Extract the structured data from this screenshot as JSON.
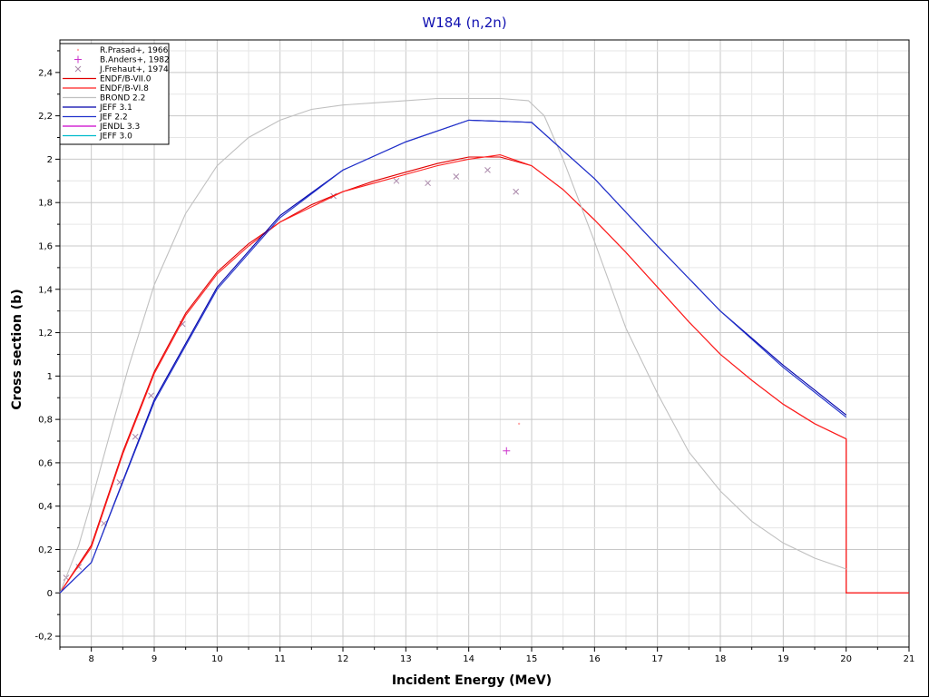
{
  "chart_data": {
    "type": "line",
    "title": "W184 (n,2n)",
    "xlabel": "Incident Energy (MeV)",
    "ylabel": "Cross section (b)",
    "xlim": [
      7.5,
      21
    ],
    "ylim": [
      -0.25,
      2.55
    ],
    "grid": true,
    "x_ticks": [
      {
        "value": 8,
        "label": "8"
      },
      {
        "value": 9,
        "label": "9"
      },
      {
        "value": 10,
        "label": "10"
      },
      {
        "value": 11,
        "label": "11"
      },
      {
        "value": 12,
        "label": "12"
      },
      {
        "value": 13,
        "label": "13"
      },
      {
        "value": 14,
        "label": "14"
      },
      {
        "value": 15,
        "label": "15"
      },
      {
        "value": 16,
        "label": "16"
      },
      {
        "value": 17,
        "label": "17"
      },
      {
        "value": 18,
        "label": "18"
      },
      {
        "value": 19,
        "label": "19"
      },
      {
        "value": 20,
        "label": "20"
      },
      {
        "value": 21,
        "label": "21"
      }
    ],
    "y_ticks": [
      {
        "value": -0.2,
        "label": "-0,2"
      },
      {
        "value": 0,
        "label": "0"
      },
      {
        "value": 0.2,
        "label": "0,2"
      },
      {
        "value": 0.4,
        "label": "0,4"
      },
      {
        "value": 0.6,
        "label": "0,6"
      },
      {
        "value": 0.8,
        "label": "0,8"
      },
      {
        "value": 1.0,
        "label": "1"
      },
      {
        "value": 1.2,
        "label": "1,2"
      },
      {
        "value": 1.4,
        "label": "1,4"
      },
      {
        "value": 1.6,
        "label": "1,6"
      },
      {
        "value": 1.8,
        "label": "1,8"
      },
      {
        "value": 2.0,
        "label": "2"
      },
      {
        "value": 2.2,
        "label": "2,2"
      },
      {
        "value": 2.4,
        "label": "2,4"
      }
    ],
    "legend_position": "top-left",
    "series": [
      {
        "name": "R.Prasad+, 1966",
        "kind": "marker",
        "marker": "dot",
        "color": "#ffaaaa",
        "x": [
          14.8
        ],
        "y": [
          0.78
        ]
      },
      {
        "name": "B.Anders+, 1982",
        "kind": "marker",
        "marker": "plus",
        "color": "#cc33cc",
        "x": [
          14.6
        ],
        "y": [
          0.655
        ]
      },
      {
        "name": "J.Frehaut+, 1974",
        "kind": "marker",
        "marker": "cross",
        "color": "#aa88aa",
        "x": [
          7.6,
          7.8,
          8.2,
          8.45,
          8.7,
          8.95,
          9.45,
          11.85,
          12.85,
          13.35,
          13.8,
          14.3,
          14.75
        ],
        "y": [
          0.07,
          0.12,
          0.32,
          0.51,
          0.72,
          0.91,
          1.24,
          1.83,
          1.9,
          1.89,
          1.92,
          1.95,
          1.85
        ]
      },
      {
        "name": "ENDF/B-VII.0",
        "kind": "line",
        "color": "#e00000",
        "x": [
          7.5,
          8.0,
          8.5,
          9.0,
          9.5,
          10.0,
          10.5,
          11.0,
          11.5,
          12.0,
          12.5,
          13.0,
          13.5,
          14.0,
          14.5,
          15.0,
          15.5,
          16.0,
          16.5,
          17.0,
          17.5,
          18.0,
          18.5,
          19.0,
          19.5,
          20.0,
          20.0,
          21.0
        ],
        "y": [
          0.0,
          0.22,
          0.65,
          1.02,
          1.29,
          1.48,
          1.61,
          1.71,
          1.79,
          1.85,
          1.9,
          1.94,
          1.98,
          2.01,
          2.01,
          1.97,
          1.86,
          1.72,
          1.57,
          1.41,
          1.25,
          1.1,
          0.98,
          0.87,
          0.78,
          0.71,
          0.0,
          0.0
        ]
      },
      {
        "name": "ENDF/B-VI.8",
        "kind": "line",
        "color": "#ff2020",
        "x": [
          7.5,
          8.0,
          8.5,
          9.0,
          9.5,
          10.0,
          10.5,
          11.0,
          11.5,
          12.0,
          12.5,
          13.0,
          13.5,
          14.0,
          14.5,
          15.0,
          15.5,
          16.0,
          16.5,
          17.0,
          17.5,
          18.0,
          18.5,
          19.0,
          19.5,
          20.0,
          20.0,
          21.0
        ],
        "y": [
          0.0,
          0.21,
          0.64,
          1.01,
          1.28,
          1.47,
          1.6,
          1.71,
          1.78,
          1.85,
          1.89,
          1.93,
          1.97,
          2.0,
          2.02,
          1.97,
          1.86,
          1.72,
          1.57,
          1.41,
          1.25,
          1.1,
          0.98,
          0.87,
          0.78,
          0.71,
          0.0,
          0.0
        ]
      },
      {
        "name": "BROND 2.2",
        "kind": "line",
        "color": "#c0c0c0",
        "x": [
          7.5,
          7.8,
          8.0,
          8.3,
          8.6,
          9.0,
          9.5,
          10.0,
          10.5,
          11.0,
          11.5,
          12.0,
          12.5,
          13.0,
          13.5,
          14.0,
          14.5,
          14.95,
          15.2,
          15.5,
          16.0,
          16.5,
          17.0,
          17.5,
          18.0,
          18.5,
          19.0,
          19.5,
          20.0
        ],
        "y": [
          0.0,
          0.22,
          0.42,
          0.74,
          1.05,
          1.42,
          1.75,
          1.97,
          2.1,
          2.18,
          2.23,
          2.25,
          2.26,
          2.27,
          2.28,
          2.28,
          2.28,
          2.27,
          2.2,
          2.0,
          1.62,
          1.22,
          0.92,
          0.65,
          0.47,
          0.33,
          0.23,
          0.16,
          0.11
        ]
      },
      {
        "name": "JEFF 3.1",
        "kind": "line",
        "color": "#0000aa",
        "x": [
          7.5,
          8.0,
          9.0,
          10.0,
          11.0,
          12.0,
          13.0,
          14.0,
          15.0,
          16.0,
          17.0,
          18.0,
          19.0,
          20.0
        ],
        "y": [
          0.0,
          0.14,
          0.89,
          1.41,
          1.74,
          1.95,
          2.08,
          2.18,
          2.17,
          1.91,
          1.6,
          1.3,
          1.05,
          0.82
        ]
      },
      {
        "name": "JEF 2.2",
        "kind": "line",
        "color": "#2233cc",
        "x": [
          7.5,
          8.0,
          9.0,
          10.0,
          11.0,
          12.0,
          13.0,
          14.0,
          15.0,
          16.0,
          17.0,
          18.0,
          19.0,
          20.0
        ],
        "y": [
          0.0,
          0.14,
          0.88,
          1.4,
          1.73,
          1.95,
          2.08,
          2.18,
          2.17,
          1.91,
          1.6,
          1.3,
          1.04,
          0.81
        ]
      },
      {
        "name": "JENDL 3.3",
        "kind": "line",
        "color": "#cc00cc",
        "x": [],
        "y": []
      },
      {
        "name": "JEFF 3.0",
        "kind": "line",
        "color": "#00bbcc",
        "x": [],
        "y": []
      }
    ]
  }
}
